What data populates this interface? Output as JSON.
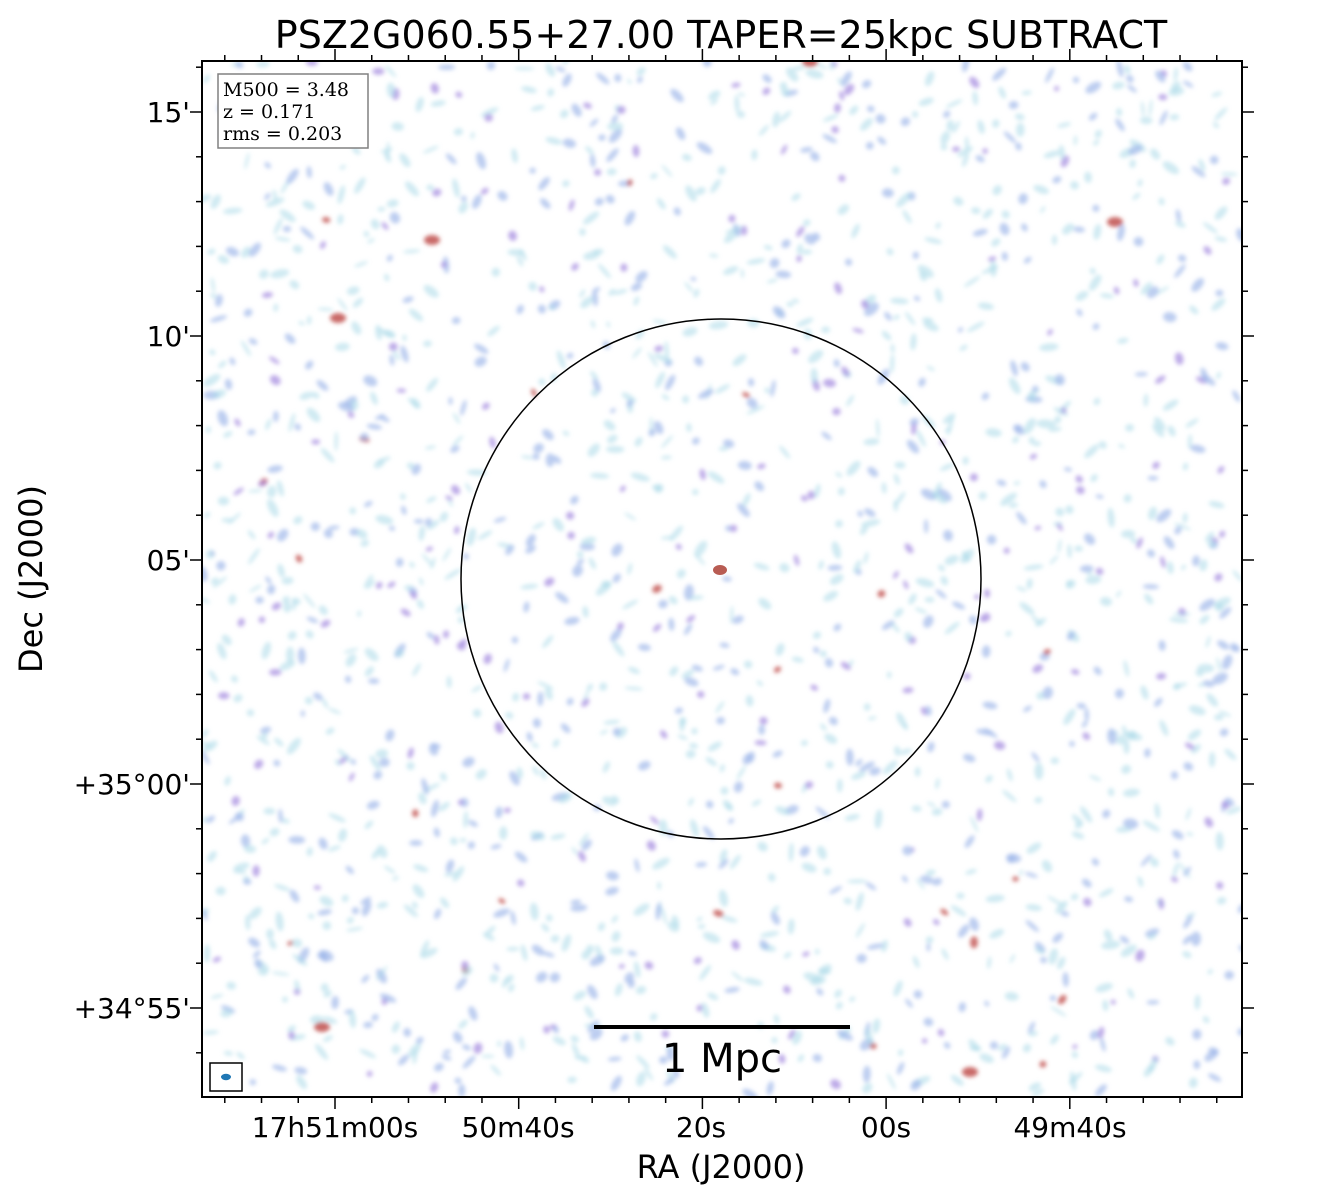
{
  "title": "PSZ2G060.55+27.00 TAPER=25kpc SUBTRACT",
  "xlabel": "RA (J2000)",
  "ylabel": "Dec (J2000)",
  "ra_ticks": [
    "17h51m00s",
    "50m40s",
    "20s",
    "00s",
    "49m40s"
  ],
  "dec_ticks": [
    "15'",
    "10'",
    "05'",
    "+35°00'",
    "+34°55'"
  ],
  "info": {
    "m500": "M500 = 3.48",
    "z": "z = 0.171",
    "rms": "rms = 0.203"
  },
  "scalebar": {
    "label": "1 Mpc"
  },
  "colors": {
    "noise_light": "#a8d8e8",
    "noise_mid": "#9fb8ea",
    "noise_violet": "#a78fe0",
    "noise_red": "#c0504d",
    "beam": "#1f77b4"
  }
}
